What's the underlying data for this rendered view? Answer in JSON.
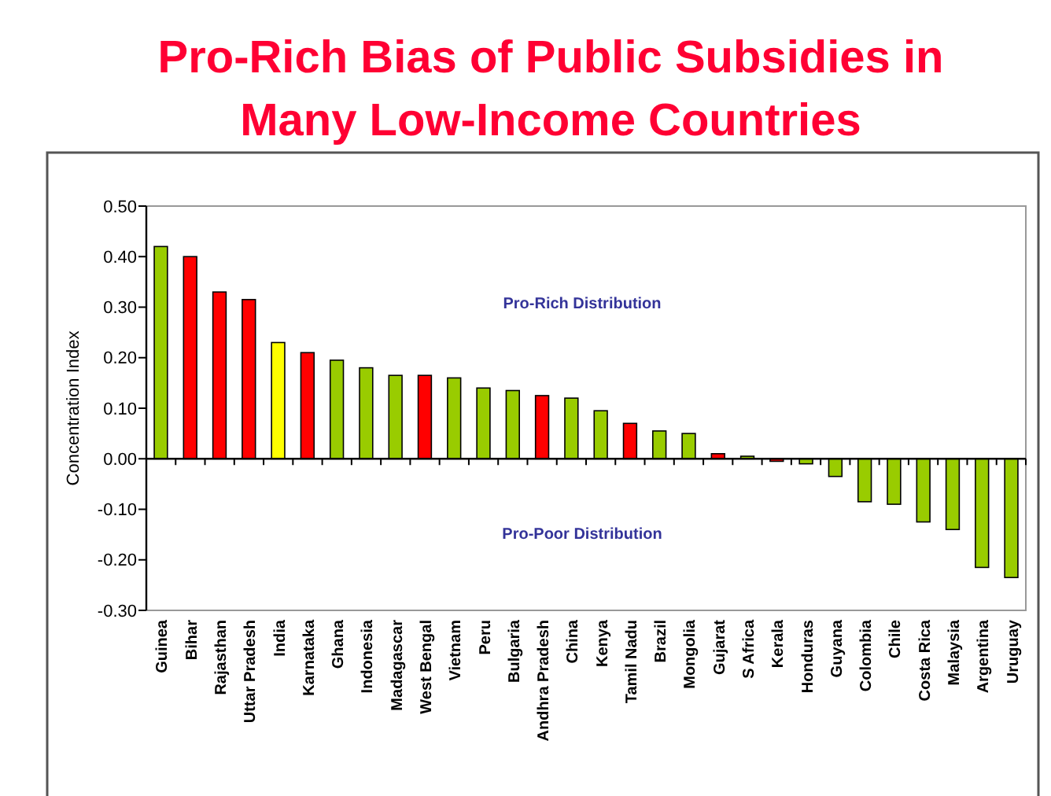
{
  "chart_data": {
    "type": "bar",
    "title": "Pro-Rich Bias of Public Subsidies in Many Low-Income Countries",
    "ylabel": "Concentration Index",
    "categories": [
      "Guinea",
      "Bihar",
      "Rajasthan",
      "Uttar Pradesh",
      "India",
      "Karnataka",
      "Ghana",
      "Indonesia",
      "Madagascar",
      "West Bengal",
      "Vietnam",
      "Peru",
      "Bulgaria",
      "Andhra Pradesh",
      "China",
      "Kenya",
      "Tamil Nadu",
      "Brazil",
      "Mongolia",
      "Gujarat",
      "S Africa",
      "Kerala",
      "Honduras",
      "Guyana",
      "Colombia",
      "Chile",
      "Costa Rica",
      "Malaysia",
      "Argentina",
      "Uruguay"
    ],
    "values": [
      0.42,
      0.4,
      0.33,
      0.315,
      0.23,
      0.21,
      0.195,
      0.18,
      0.165,
      0.165,
      0.16,
      0.14,
      0.135,
      0.125,
      0.12,
      0.095,
      0.07,
      0.055,
      0.05,
      0.01,
      0.005,
      -0.005,
      -0.01,
      -0.035,
      -0.085,
      -0.09,
      -0.125,
      -0.14,
      -0.215,
      -0.235
    ],
    "colors": [
      "#99cc00",
      "#ff0000",
      "#ff0000",
      "#ff0000",
      "#ffff00",
      "#ff0000",
      "#99cc00",
      "#99cc00",
      "#99cc00",
      "#ff0000",
      "#99cc00",
      "#99cc00",
      "#99cc00",
      "#ff0000",
      "#99cc00",
      "#99cc00",
      "#ff0000",
      "#99cc00",
      "#99cc00",
      "#ff0000",
      "#99cc00",
      "#ff0000",
      "#99cc00",
      "#99cc00",
      "#99cc00",
      "#99cc00",
      "#99cc00",
      "#99cc00",
      "#99cc00",
      "#99cc00"
    ],
    "ylim": [
      -0.3,
      0.5
    ],
    "yticks": [
      {
        "value": -0.3,
        "label": "-0.30"
      },
      {
        "value": -0.2,
        "label": "-0.20"
      },
      {
        "value": -0.1,
        "label": "-0.10"
      },
      {
        "value": 0,
        "label": "0.00"
      },
      {
        "value": 0.1,
        "label": "0.10"
      },
      {
        "value": 0.2,
        "label": "0.20"
      },
      {
        "value": 0.3,
        "label": "0.30"
      },
      {
        "value": 0.4,
        "label": "0.40"
      },
      {
        "value": 0.5,
        "label": "0.50"
      }
    ],
    "annotations": [
      "Pro-Rich Distribution",
      "Pro-Poor Distribution"
    ]
  }
}
